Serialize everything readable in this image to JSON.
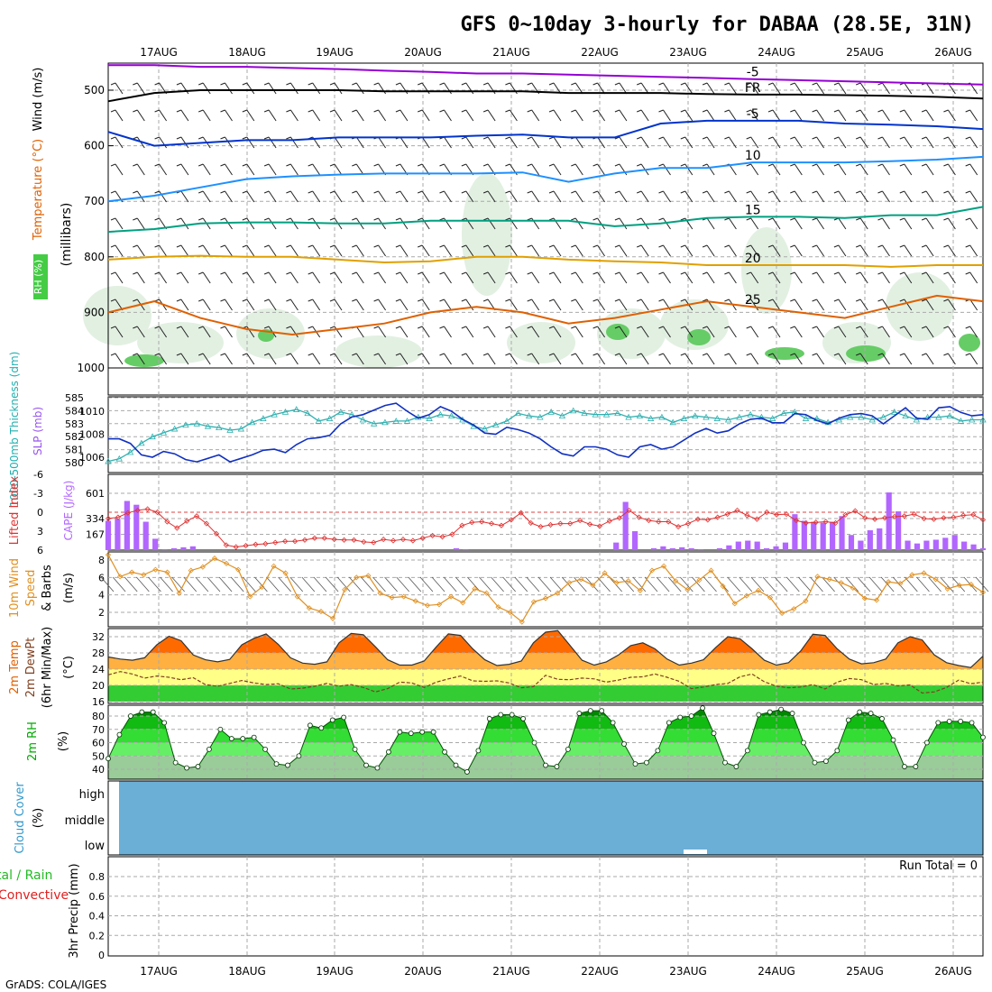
{
  "title": "GFS 0~10day 3-hourly for DABAA (28.5E, 31N)",
  "footer": "GrADS: COLA/IGES",
  "dates": [
    "17AUG",
    "18AUG",
    "19AUG",
    "20AUG",
    "21AUG",
    "22AUG",
    "23AUG",
    "24AUG",
    "25AUG",
    "26AUG"
  ],
  "chart_data": [
    {
      "type": "heatmap",
      "panel": "upper-air",
      "ylabel": "(millibars)",
      "title_parts": [
        {
          "text": "RH (%)",
          "color": "#00aa00"
        },
        {
          "text": "Temperature (°C)",
          "color": "#f4a460"
        },
        {
          "text": "Wind (m/s)",
          "color": "#000000"
        }
      ],
      "y_ticks": [
        500,
        600,
        700,
        800,
        900,
        1000
      ],
      "ylim": [
        450,
        1000
      ],
      "contours": [
        {
          "label": "-5",
          "color": "#9400d3",
          "values": [
            455,
            455,
            458,
            458,
            460,
            462,
            465,
            467,
            470,
            470,
            472,
            474,
            476,
            478,
            480,
            482,
            484,
            486,
            488,
            490
          ]
        },
        {
          "label": "FR",
          "color": "#000000",
          "values": [
            520,
            505,
            500,
            500,
            500,
            500,
            502,
            502,
            502,
            502,
            505,
            505,
            505,
            507,
            508,
            508,
            509,
            510,
            512,
            515
          ]
        },
        {
          "label": "-5",
          "color": "#0033cc",
          "values": [
            575,
            600,
            595,
            590,
            590,
            585,
            585,
            585,
            582,
            580,
            585,
            585,
            560,
            555,
            555,
            555,
            560,
            562,
            565,
            570
          ]
        },
        {
          "label": "10",
          "color": "#1e90ff",
          "values": [
            700,
            690,
            675,
            660,
            655,
            652,
            650,
            650,
            650,
            648,
            665,
            650,
            640,
            640,
            630,
            630,
            630,
            628,
            625,
            620
          ]
        },
        {
          "label": "15",
          "color": "#00a080",
          "values": [
            755,
            750,
            740,
            738,
            738,
            740,
            740,
            735,
            735,
            735,
            735,
            745,
            740,
            730,
            728,
            728,
            730,
            725,
            725,
            710
          ]
        },
        {
          "label": "20",
          "color": "#e0a000",
          "values": [
            805,
            800,
            798,
            800,
            800,
            805,
            810,
            808,
            800,
            800,
            805,
            808,
            810,
            815,
            815,
            815,
            815,
            818,
            815,
            815
          ]
        },
        {
          "label": "25",
          "color": "#e06000",
          "values": [
            900,
            880,
            910,
            930,
            940,
            930,
            920,
            900,
            890,
            900,
            920,
            910,
            895,
            880,
            890,
            900,
            910,
            890,
            870,
            880
          ]
        }
      ]
    },
    {
      "type": "line",
      "panel": "thickness-slp",
      "ylabel_left": "1000-500mb Thickness (dm)",
      "ylabel_right": "SLP (mb)",
      "y_ticks_left": [
        580,
        581,
        582,
        583,
        584,
        585
      ],
      "y_ticks_right": [
        1006,
        1008,
        1010
      ],
      "series": [
        {
          "name": "1000-500mb Thickness (dm)",
          "color": "#30b0b0",
          "values": [
            580.1,
            580.3,
            580.8,
            581.5,
            582.0,
            582.3,
            582.6,
            582.9,
            583.0,
            582.8,
            582.7,
            582.5,
            582.6,
            583.1,
            583.4,
            583.7,
            583.9,
            584.1,
            583.8,
            583.2,
            583.4,
            583.9,
            583.7,
            583.3,
            583.0,
            583.1,
            583.2,
            583.2,
            583.5,
            583.4,
            583.7,
            583.6,
            583.3,
            582.8,
            582.6,
            582.9,
            583.2,
            583.8,
            583.6,
            583.5,
            583.9,
            583.6,
            584.0,
            583.8,
            583.7,
            583.7,
            583.8,
            583.5,
            583.6,
            583.4,
            583.5,
            583.1,
            583.4,
            583.6,
            583.5,
            583.4,
            583.3,
            583.5,
            583.7,
            583.5,
            583.4,
            583.8,
            583.9,
            583.4,
            583.4,
            583.1,
            583.3,
            583.5,
            583.5,
            583.3,
            583.5,
            583.9,
            583.6,
            583.3,
            583.5,
            583.5,
            583.6,
            583.2,
            583.3,
            583.3
          ]
        },
        {
          "name": "SLP (mb)",
          "color": "#1030c0",
          "values": [
            1007.6,
            1007.6,
            1007.2,
            1006.2,
            1006.0,
            1006.5,
            1006.3,
            1005.8,
            1005.6,
            1005.9,
            1006.2,
            1005.6,
            1005.9,
            1006.2,
            1006.6,
            1006.7,
            1006.4,
            1007.1,
            1007.6,
            1007.7,
            1007.9,
            1008.9,
            1009.5,
            1009.7,
            1010.1,
            1010.5,
            1010.7,
            1010.0,
            1009.4,
            1009.7,
            1010.4,
            1010.0,
            1009.3,
            1008.8,
            1008.1,
            1008.0,
            1008.6,
            1008.4,
            1008.1,
            1007.6,
            1006.9,
            1006.3,
            1006.1,
            1006.9,
            1006.9,
            1006.7,
            1006.2,
            1006.0,
            1006.9,
            1007.1,
            1006.7,
            1006.9,
            1007.5,
            1008.1,
            1008.5,
            1008.1,
            1008.3,
            1008.9,
            1009.3,
            1009.4,
            1009.0,
            1009.0,
            1009.8,
            1009.7,
            1009.2,
            1008.9,
            1009.4,
            1009.7,
            1009.8,
            1009.6,
            1008.9,
            1009.6,
            1010.3,
            1009.4,
            1009.3,
            1010.3,
            1010.4,
            1009.9,
            1009.6,
            1009.7
          ]
        }
      ]
    },
    {
      "type": "bar",
      "panel": "cape-li",
      "ylabel_left": "Lifted Index",
      "ylabel_right": "CAPE (J/kg)",
      "y_ticks_left": [
        "-6",
        "-3",
        "0",
        "3",
        "6"
      ],
      "y_ticks_right": [
        "601",
        "334",
        "167"
      ],
      "series": [
        {
          "name": "CAPE (J/kg)",
          "color": "#b266ff",
          "values": [
            310,
            330,
            520,
            480,
            300,
            120,
            10,
            20,
            30,
            40,
            0,
            0,
            0,
            0,
            0,
            0,
            0,
            0,
            0,
            0,
            0,
            0,
            0,
            0,
            0,
            0,
            0,
            0,
            0,
            0,
            0,
            0,
            0,
            0,
            0,
            0,
            0,
            20,
            10,
            0,
            0,
            0,
            0,
            0,
            0,
            0,
            0,
            0,
            0,
            0,
            0,
            0,
            0,
            0,
            80,
            510,
            200,
            0,
            20,
            40,
            20,
            30,
            20,
            10,
            0,
            20,
            50,
            90,
            100,
            90,
            20,
            40,
            80,
            380,
            310,
            300,
            290,
            300,
            360,
            160,
            100,
            210,
            230,
            610,
            410,
            100,
            70,
            100,
            110,
            130,
            160,
            90,
            60,
            20
          ]
        },
        {
          "name": "Lifted Index",
          "color": "#e03030",
          "values": [
            1.0,
            0.8,
            0.1,
            -0.3,
            -0.5,
            0.0,
            1.5,
            2.5,
            1.4,
            0.6,
            1.8,
            3.4,
            5.2,
            5.5,
            5.3,
            5.1,
            5.0,
            4.8,
            4.6,
            4.6,
            4.4,
            4.1,
            4.1,
            4.3,
            4.4,
            4.4,
            4.7,
            4.8,
            4.3,
            4.5,
            4.3,
            4.5,
            4.1,
            3.7,
            3.9,
            3.5,
            2.1,
            1.6,
            1.5,
            1.8,
            2.1,
            1.2,
            0.1,
            1.7,
            2.3,
            2.0,
            1.8,
            1.8,
            1.3,
            1.9,
            2.2,
            1.4,
            0.9,
            -0.3,
            0.8,
            1.3,
            1.5,
            1.5,
            2.3,
            1.8,
            1.1,
            1.2,
            0.8,
            0.3,
            -0.3,
            0.5,
            1.1,
            0.0,
            0.4,
            0.3,
            1.3,
            1.7,
            1.6,
            1.5,
            1.7,
            0.4,
            -0.2,
            0.9,
            1.1,
            0.9,
            0.7,
            0.6,
            0.3,
            1.0,
            1.1,
            0.9,
            0.8,
            0.5,
            0.4,
            1.2
          ]
        }
      ]
    },
    {
      "type": "line",
      "panel": "wind10m",
      "ylabel": "10m Wind Speed & Barbs (m/s)",
      "y_ticks": [
        2,
        4,
        6,
        8
      ],
      "series": [
        {
          "name": "10m Wind Speed",
          "color": "#e09020",
          "values": [
            8.6,
            6.1,
            6.6,
            6.3,
            6.9,
            6.6,
            4.2,
            6.8,
            7.2,
            8.2,
            7.6,
            6.9,
            3.8,
            4.9,
            7.3,
            6.5,
            3.8,
            2.5,
            2.1,
            1.3,
            4.6,
            6.0,
            6.2,
            4.2,
            3.7,
            3.8,
            3.3,
            2.8,
            2.9,
            3.8,
            3.1,
            4.7,
            4.2,
            2.6,
            2.0,
            0.9,
            3.2,
            3.6,
            4.2,
            5.4,
            5.8,
            5.1,
            6.5,
            5.4,
            5.6,
            4.5,
            6.8,
            7.3,
            5.6,
            4.6,
            5.7,
            6.8,
            5.0,
            3.0,
            3.9,
            4.5,
            3.7,
            1.9,
            2.4,
            3.3,
            6.1,
            5.8,
            5.4,
            4.8,
            3.6,
            3.4,
            5.5,
            5.3,
            6.3,
            6.5,
            5.8,
            4.7,
            5.1,
            5.2,
            4.3
          ]
        }
      ]
    },
    {
      "type": "area",
      "panel": "temp2m",
      "ylabel": "2m Temp 2m DewPt (6hr Min/Max) (°C)",
      "y_ticks": [
        16,
        20,
        24,
        28,
        32
      ],
      "series": [
        {
          "name": "2m Temp",
          "color": "#ff6000",
          "values": [
            27.0,
            26.5,
            26.2,
            26.8,
            30.0,
            32.1,
            31.0,
            27.5,
            26.3,
            25.8,
            26.4,
            30.0,
            31.6,
            32.7,
            30.1,
            26.8,
            25.5,
            25.2,
            25.8,
            30.5,
            32.8,
            32.5,
            29.5,
            26.3,
            25.0,
            25.0,
            26.0,
            29.5,
            32.7,
            32.3,
            29.0,
            26.3,
            24.9,
            25.2,
            26.0,
            30.5,
            33.1,
            33.5,
            29.9,
            26.2,
            25.0,
            25.8,
            27.5,
            29.8,
            30.5,
            29.0,
            26.5,
            25.0,
            25.5,
            26.3,
            29.3,
            32.0,
            31.5,
            29.0,
            26.2,
            25.0,
            25.6,
            28.5,
            32.6,
            32.3,
            29.0,
            26.5,
            25.3,
            25.6,
            26.5,
            30.5,
            32.0,
            31.2,
            27.5,
            25.6,
            24.9,
            24.4,
            27.2
          ]
        },
        {
          "name": "2m DewPt",
          "color": "#804020",
          "values": [
            22.6,
            23.4,
            22.8,
            21.8,
            22.3,
            22.0,
            21.4,
            21.9,
            20.2,
            19.8,
            20.5,
            21.2,
            20.6,
            20.2,
            20.4,
            19.1,
            19.3,
            19.8,
            20.5,
            19.8,
            20.2,
            19.5,
            18.4,
            19.2,
            20.8,
            20.6,
            19.5,
            20.8,
            21.6,
            22.3,
            21.1,
            21.0,
            21.1,
            20.6,
            19.4,
            19.7,
            22.5,
            21.5,
            21.4,
            21.8,
            21.6,
            20.8,
            21.3,
            22.0,
            22.1,
            22.8,
            22.0,
            21.0,
            19.2,
            19.6,
            20.2,
            20.5,
            22.1,
            22.8,
            20.9,
            19.8,
            19.4,
            19.6,
            20.2,
            19.1,
            20.8,
            21.7,
            21.4,
            20.2,
            20.5,
            19.9,
            20.1,
            18.1,
            18.4,
            19.5,
            21.3,
            20.4,
            20.8
          ]
        }
      ]
    },
    {
      "type": "area",
      "panel": "rh2m",
      "ylabel": "2m RH (%)",
      "y_ticks": [
        40,
        50,
        60,
        70,
        80
      ],
      "series": [
        {
          "name": "2m RH",
          "color": "#00bb00",
          "values": [
            48,
            66,
            80,
            83,
            83,
            75,
            45,
            41,
            42,
            55,
            70,
            63,
            63,
            64,
            55,
            44,
            43,
            50,
            73,
            71,
            77,
            79,
            55,
            43,
            41,
            53,
            68,
            67,
            68,
            68,
            53,
            43,
            38,
            54,
            78,
            81,
            81,
            78,
            60,
            43,
            42,
            55,
            82,
            84,
            84,
            75,
            59,
            44,
            45,
            54,
            75,
            79,
            80,
            86,
            67,
            45,
            42,
            54,
            81,
            83,
            85,
            82,
            60,
            45,
            46,
            54,
            77,
            83,
            82,
            78,
            62,
            42,
            42,
            60,
            75,
            76,
            76,
            75,
            64
          ]
        }
      ]
    },
    {
      "type": "area",
      "panel": "cloud",
      "ylabel": "Cloud Cover (%)",
      "y_ticks": [
        "high",
        "middle",
        "low"
      ],
      "values": [
        0
      ]
    },
    {
      "type": "bar",
      "panel": "precip",
      "ylabel_left": "Total / Rain Convective",
      "ylabel_right": "3hr Precip (mm)",
      "y_ticks": [
        "0",
        "0.2",
        "0.4",
        "0.6",
        "0.8"
      ],
      "ylim": [
        0,
        1
      ],
      "annotation": "Run Total = 0",
      "values": [
        0
      ]
    }
  ]
}
